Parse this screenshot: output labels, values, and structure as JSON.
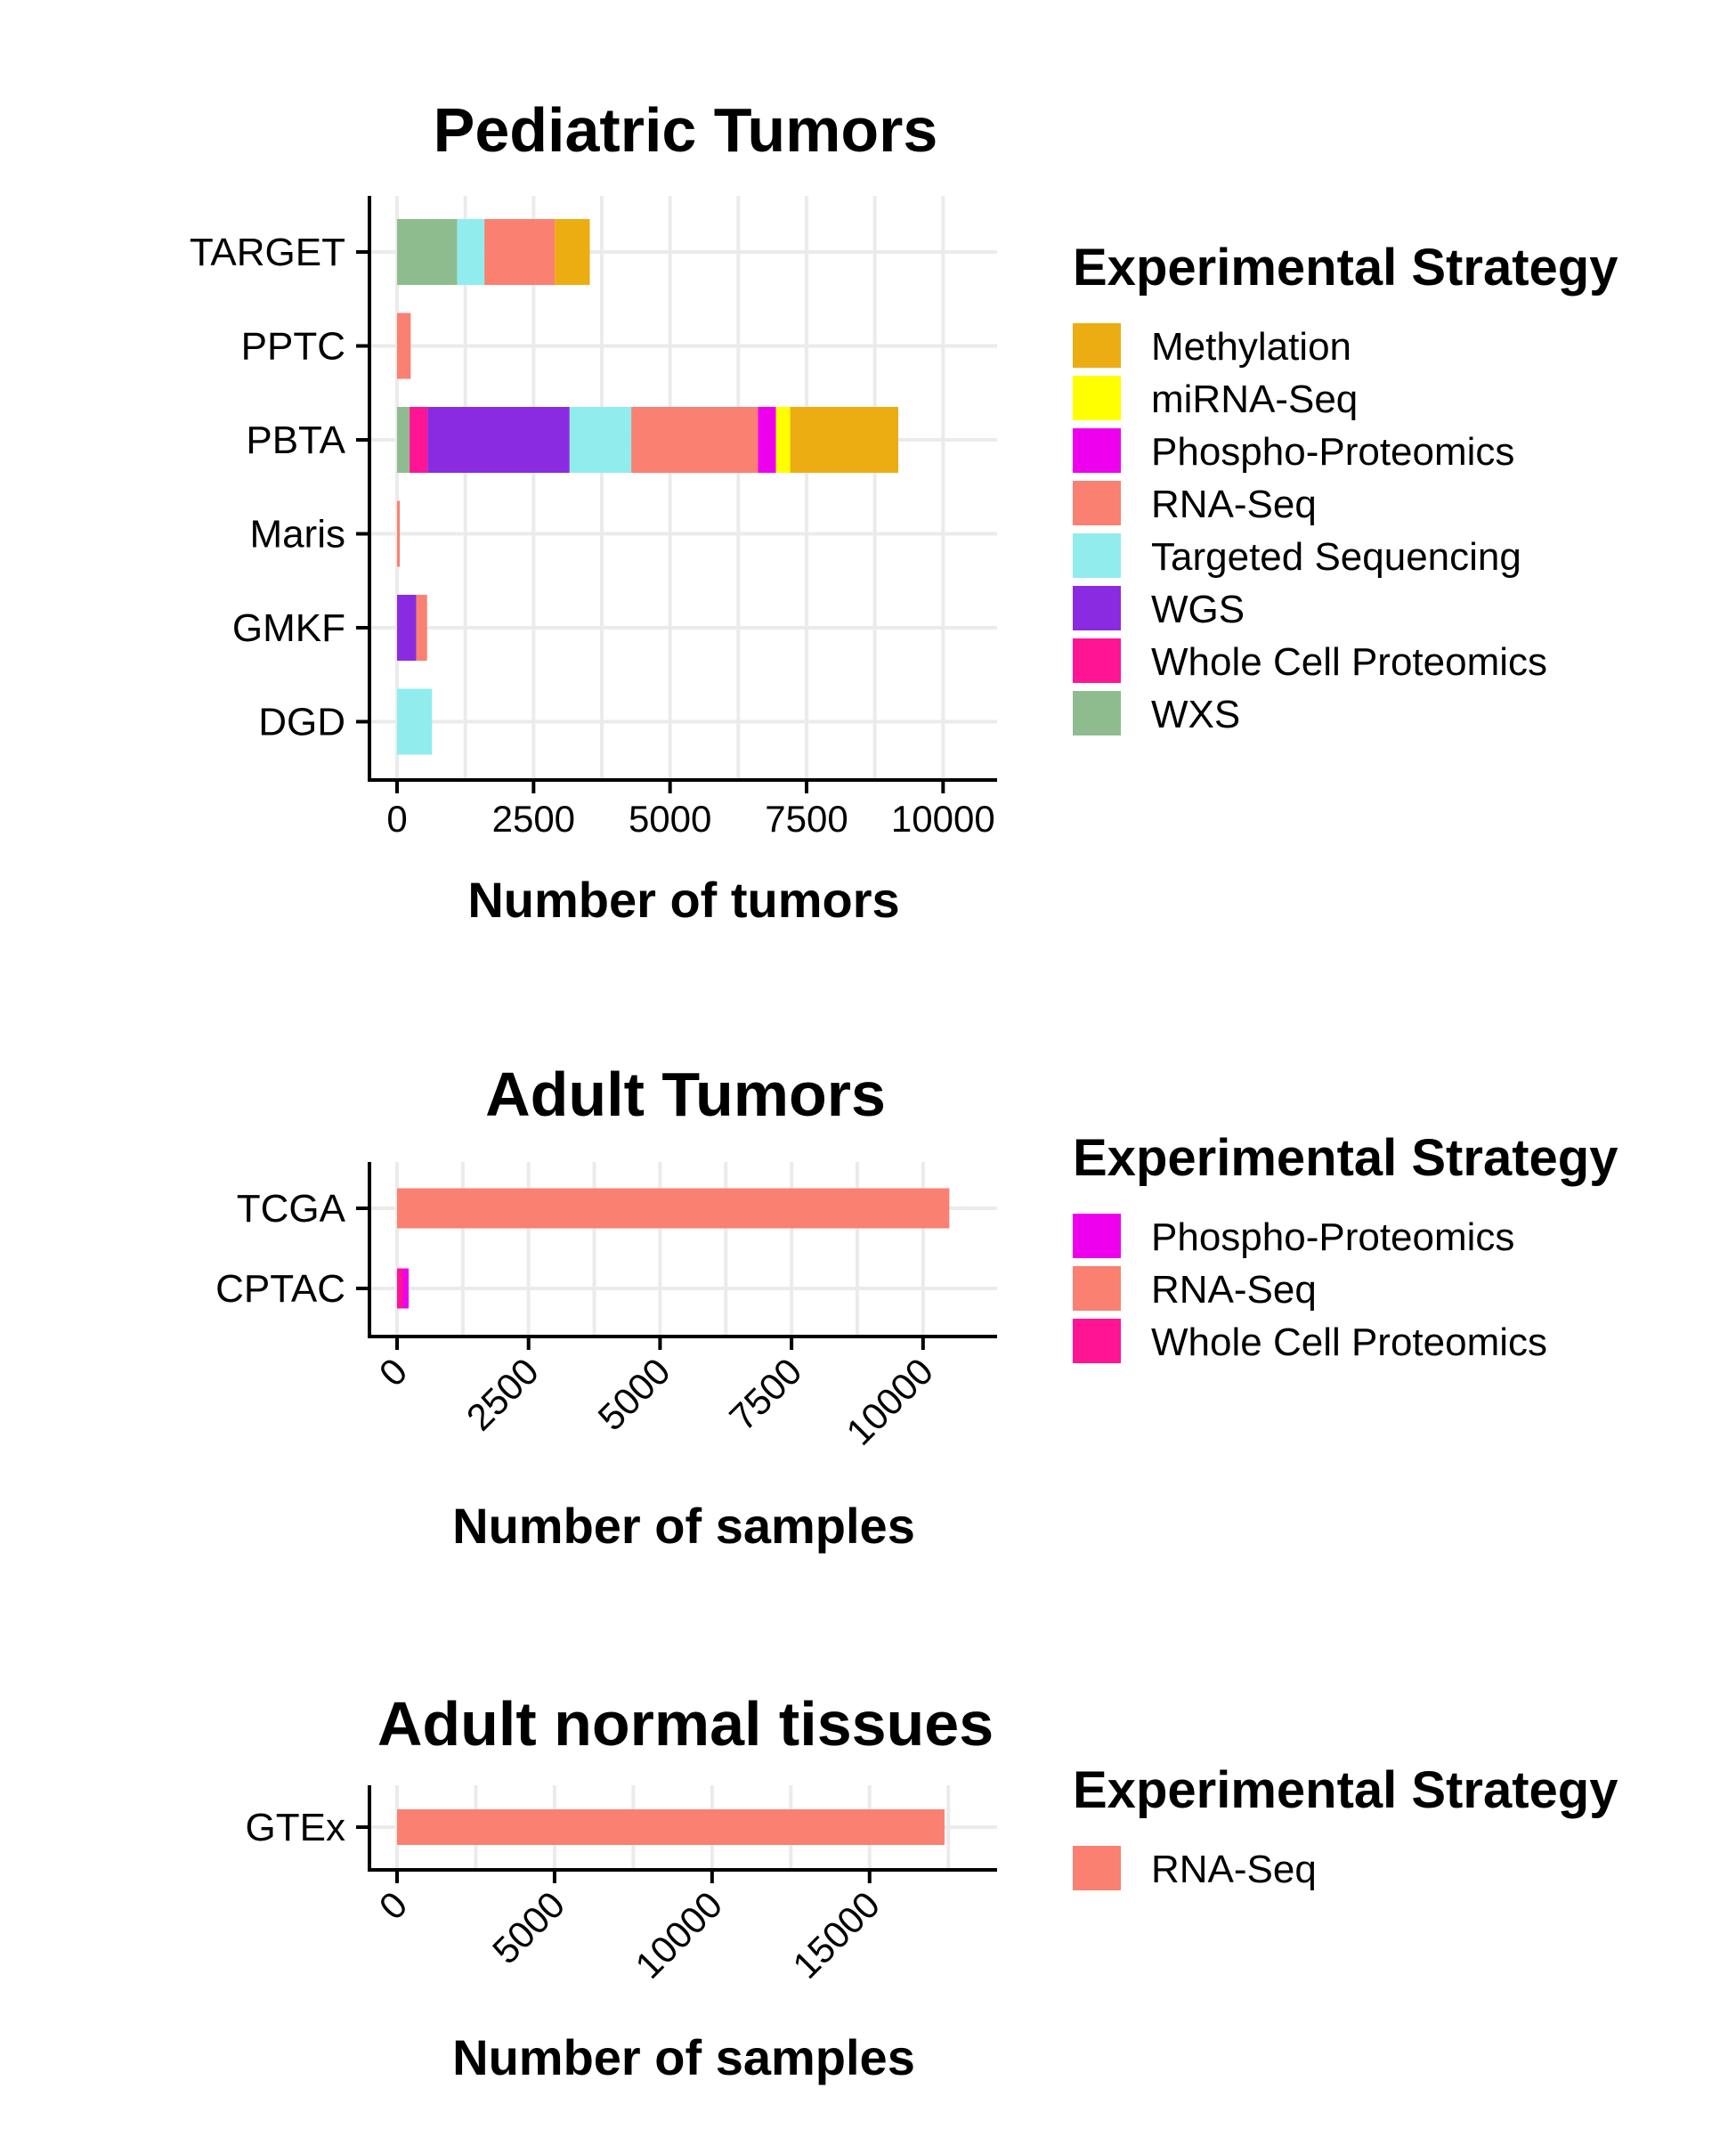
{
  "colors": {
    "Methylation": "#ECAD12",
    "miRNA-Seq": "#FFFF00",
    "Phospho-Proteomics": "#EE00EE",
    "RNA-Seq": "#FA8072",
    "Targeted Sequencing": "#91EDED",
    "WGS": "#8A2BE2",
    "Whole Cell Proteomics": "#FF1493",
    "WXS": "#8FBC8F"
  },
  "chart_data": [
    {
      "type": "bar",
      "orientation": "horizontal",
      "stacked": true,
      "title": "Pediatric Tumors",
      "xlabel": "Number of tumors",
      "ylabel": "",
      "xlim": [
        0,
        10500
      ],
      "xticks": [
        0,
        2500,
        5000,
        7500,
        10000
      ],
      "xtick_rotation": 0,
      "categories": [
        "TARGET",
        "PPTC",
        "PBTA",
        "Maris",
        "GMKF",
        "DGD"
      ],
      "stack_order": [
        "WXS",
        "Whole Cell Proteomics",
        "WGS",
        "Targeted Sequencing",
        "RNA-Seq",
        "Phospho-Proteomics",
        "miRNA-Seq",
        "Methylation"
      ],
      "series": [
        {
          "name": "WXS",
          "values": [
            1100,
            0,
            230,
            0,
            0,
            0
          ]
        },
        {
          "name": "Whole Cell Proteomics",
          "values": [
            0,
            0,
            330,
            0,
            0,
            0
          ]
        },
        {
          "name": "WGS",
          "values": [
            0,
            0,
            2600,
            0,
            350,
            0
          ]
        },
        {
          "name": "Targeted Sequencing",
          "values": [
            500,
            0,
            1130,
            0,
            0,
            640
          ]
        },
        {
          "name": "RNA-Seq",
          "values": [
            1290,
            250,
            2320,
            50,
            200,
            0
          ]
        },
        {
          "name": "Phospho-Proteomics",
          "values": [
            0,
            0,
            330,
            0,
            0,
            0
          ]
        },
        {
          "name": "miRNA-Seq",
          "values": [
            0,
            0,
            260,
            0,
            0,
            0
          ]
        },
        {
          "name": "Methylation",
          "values": [
            640,
            0,
            1980,
            0,
            0,
            0
          ]
        }
      ],
      "grid": true,
      "legend": {
        "title": "Experimental Strategy",
        "placement": "right",
        "entries": [
          "Methylation",
          "miRNA-Seq",
          "Phospho-Proteomics",
          "RNA-Seq",
          "Targeted Sequencing",
          "WGS",
          "Whole Cell Proteomics",
          "WXS"
        ]
      }
    },
    {
      "type": "bar",
      "orientation": "horizontal",
      "stacked": true,
      "title": "Adult Tumors",
      "xlabel": "Number of samples",
      "ylabel": "",
      "xlim": [
        0,
        10900
      ],
      "xticks": [
        0,
        2500,
        5000,
        7500,
        10000
      ],
      "xtick_rotation": -45,
      "categories": [
        "TCGA",
        "CPTAC"
      ],
      "stack_order": [
        "Whole Cell Proteomics",
        "RNA-Seq",
        "Phospho-Proteomics"
      ],
      "series": [
        {
          "name": "Whole Cell Proteomics",
          "values": [
            0,
            110
          ]
        },
        {
          "name": "RNA-Seq",
          "values": [
            10500,
            0
          ]
        },
        {
          "name": "Phospho-Proteomics",
          "values": [
            0,
            110
          ]
        }
      ],
      "grid": true,
      "legend": {
        "title": "Experimental Strategy",
        "placement": "right",
        "entries": [
          "Phospho-Proteomics",
          "RNA-Seq",
          "Whole Cell Proteomics"
        ]
      }
    },
    {
      "type": "bar",
      "orientation": "horizontal",
      "stacked": true,
      "title": "Adult normal tissues",
      "xlabel": "Number of samples",
      "ylabel": "",
      "xlim": [
        0,
        18200
      ],
      "xticks": [
        0,
        5000,
        10000,
        15000
      ],
      "xtick_rotation": -45,
      "categories": [
        "GTEx"
      ],
      "stack_order": [
        "RNA-Seq"
      ],
      "series": [
        {
          "name": "RNA-Seq",
          "values": [
            17380
          ]
        }
      ],
      "grid": true,
      "legend": {
        "title": "Experimental Strategy",
        "placement": "right",
        "entries": [
          "RNA-Seq"
        ]
      }
    }
  ]
}
